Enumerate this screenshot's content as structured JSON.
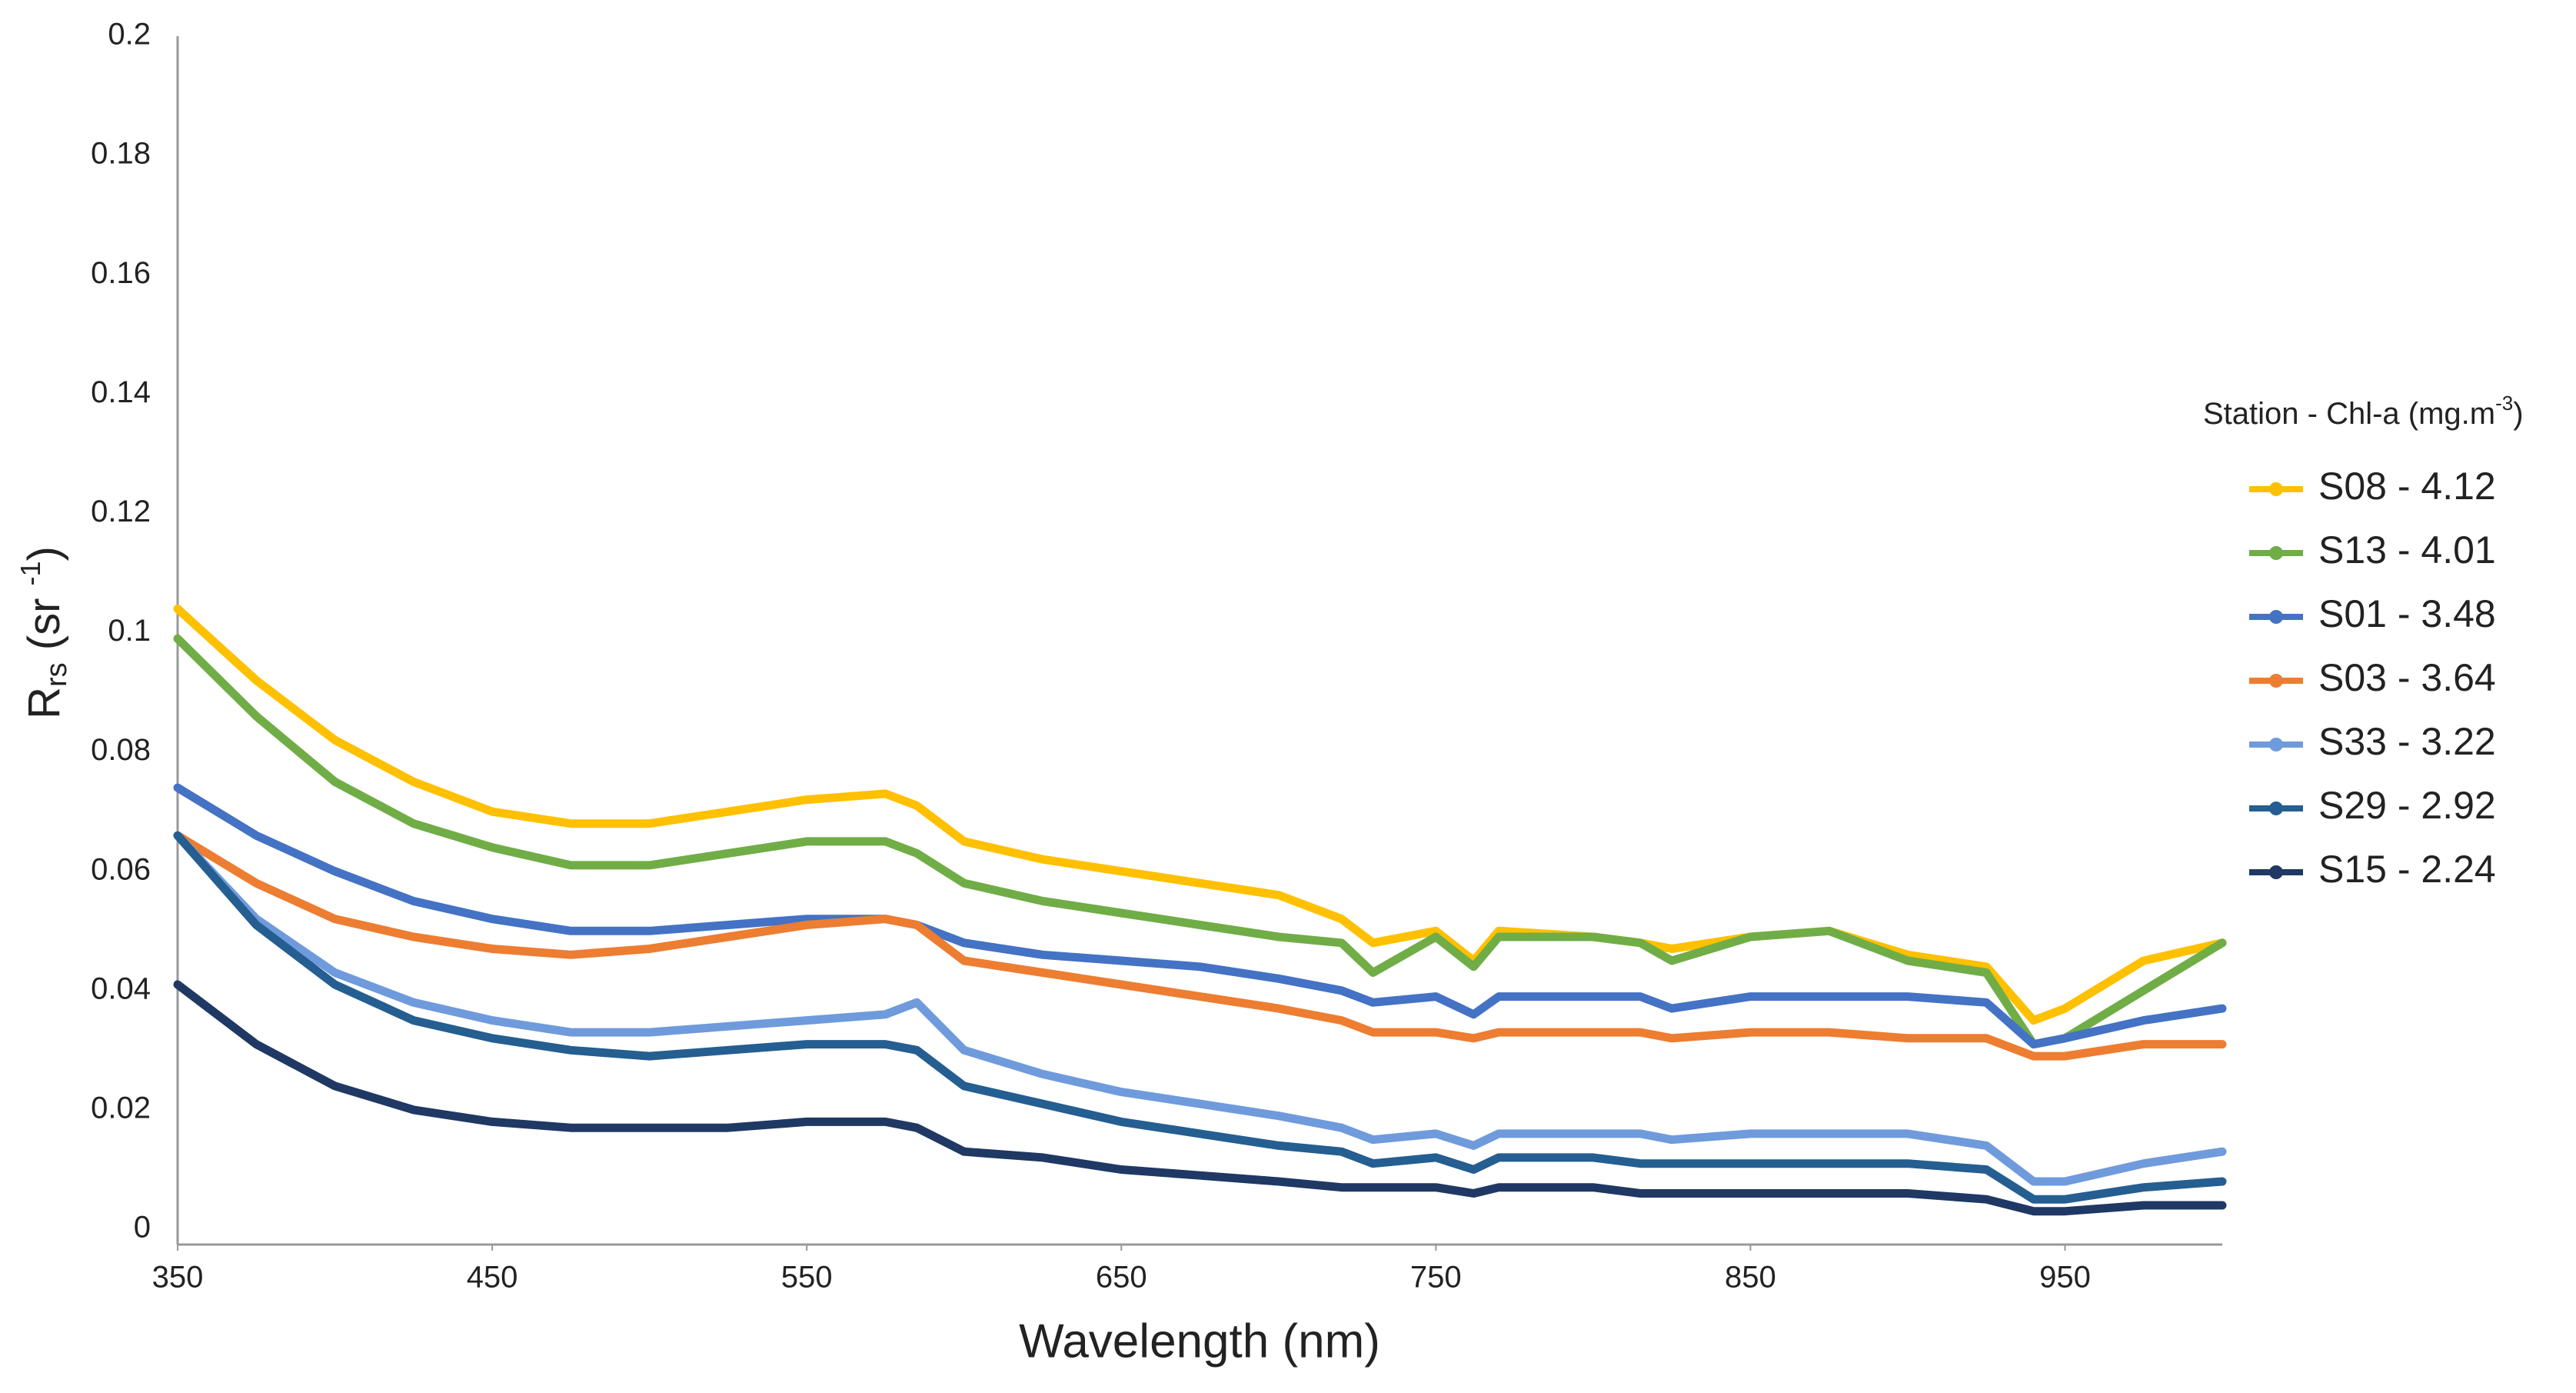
{
  "chart_data": {
    "type": "line",
    "x_label": "Wavelength (nm)",
    "y_label_parts": [
      "R",
      "rs",
      " (sr ",
      "-1",
      ")"
    ],
    "legend_title_parts": [
      "Station - Chl-a (mg.m",
      "-3",
      ")"
    ],
    "legend": "right",
    "grid": false,
    "xlim": [
      350,
      1000
    ],
    "xticks": [
      350,
      450,
      550,
      650,
      750,
      850,
      950
    ],
    "ylim": [
      0,
      0.2
    ],
    "yticks": [
      0,
      0.02,
      0.04,
      0.06,
      0.08,
      0.1,
      0.12,
      0.14,
      0.16,
      0.18,
      0.2
    ],
    "x": [
      350,
      375,
      400,
      425,
      450,
      475,
      500,
      525,
      550,
      575,
      585,
      600,
      625,
      650,
      675,
      700,
      720,
      730,
      750,
      762,
      770,
      800,
      815,
      825,
      850,
      875,
      900,
      925,
      940,
      950,
      975,
      1000
    ],
    "series": [
      {
        "name": "S08 - 4.12",
        "color": "#ffc000",
        "values": [
          0.104,
          0.092,
          0.082,
          0.075,
          0.07,
          0.068,
          0.068,
          0.07,
          0.072,
          0.073,
          0.071,
          0.065,
          0.062,
          0.06,
          0.058,
          0.056,
          0.052,
          0.048,
          0.05,
          0.045,
          0.05,
          0.049,
          0.048,
          0.047,
          0.049,
          0.05,
          0.046,
          0.044,
          0.035,
          0.037,
          0.045,
          0.048
        ]
      },
      {
        "name": "S13 - 4.01",
        "color": "#70ad47",
        "values": [
          0.099,
          0.086,
          0.075,
          0.068,
          0.064,
          0.061,
          0.061,
          0.063,
          0.065,
          0.065,
          0.063,
          0.058,
          0.055,
          0.053,
          0.051,
          0.049,
          0.048,
          0.043,
          0.049,
          0.044,
          0.049,
          0.049,
          0.048,
          0.045,
          0.049,
          0.05,
          0.045,
          0.043,
          0.031,
          0.032,
          0.04,
          0.048
        ]
      },
      {
        "name": "S01 - 3.48",
        "color": "#4472c4",
        "values": [
          0.074,
          0.066,
          0.06,
          0.055,
          0.052,
          0.05,
          0.05,
          0.051,
          0.052,
          0.052,
          0.051,
          0.048,
          0.046,
          0.045,
          0.044,
          0.042,
          0.04,
          0.038,
          0.039,
          0.036,
          0.039,
          0.039,
          0.039,
          0.037,
          0.039,
          0.039,
          0.039,
          0.038,
          0.031,
          0.032,
          0.035,
          0.037
        ]
      },
      {
        "name": "S03 - 3.64",
        "color": "#ed7d31",
        "values": [
          0.066,
          0.058,
          0.052,
          0.049,
          0.047,
          0.046,
          0.047,
          0.049,
          0.051,
          0.052,
          0.051,
          0.045,
          0.043,
          0.041,
          0.039,
          0.037,
          0.035,
          0.033,
          0.033,
          0.032,
          0.033,
          0.033,
          0.033,
          0.032,
          0.033,
          0.033,
          0.032,
          0.032,
          0.029,
          0.029,
          0.031,
          0.031
        ]
      },
      {
        "name": "S33 - 3.22",
        "color": "#6f9bdc",
        "values": [
          0.066,
          0.052,
          0.043,
          0.038,
          0.035,
          0.033,
          0.033,
          0.034,
          0.035,
          0.036,
          0.038,
          0.03,
          0.026,
          0.023,
          0.021,
          0.019,
          0.017,
          0.015,
          0.016,
          0.014,
          0.016,
          0.016,
          0.016,
          0.015,
          0.016,
          0.016,
          0.016,
          0.014,
          0.008,
          0.008,
          0.011,
          0.013
        ]
      },
      {
        "name": "S29 - 2.92",
        "color": "#255e91",
        "values": [
          0.066,
          0.051,
          0.041,
          0.035,
          0.032,
          0.03,
          0.029,
          0.03,
          0.031,
          0.031,
          0.03,
          0.024,
          0.021,
          0.018,
          0.016,
          0.014,
          0.013,
          0.011,
          0.012,
          0.01,
          0.012,
          0.012,
          0.011,
          0.011,
          0.011,
          0.011,
          0.011,
          0.01,
          0.005,
          0.005,
          0.007,
          0.008
        ]
      },
      {
        "name": "S15 - 2.24",
        "color": "#1f3864",
        "values": [
          0.041,
          0.031,
          0.024,
          0.02,
          0.018,
          0.017,
          0.017,
          0.017,
          0.018,
          0.018,
          0.017,
          0.013,
          0.012,
          0.01,
          0.009,
          0.008,
          0.007,
          0.007,
          0.007,
          0.006,
          0.007,
          0.007,
          0.006,
          0.006,
          0.006,
          0.006,
          0.006,
          0.005,
          0.003,
          0.003,
          0.004,
          0.004
        ]
      }
    ]
  }
}
